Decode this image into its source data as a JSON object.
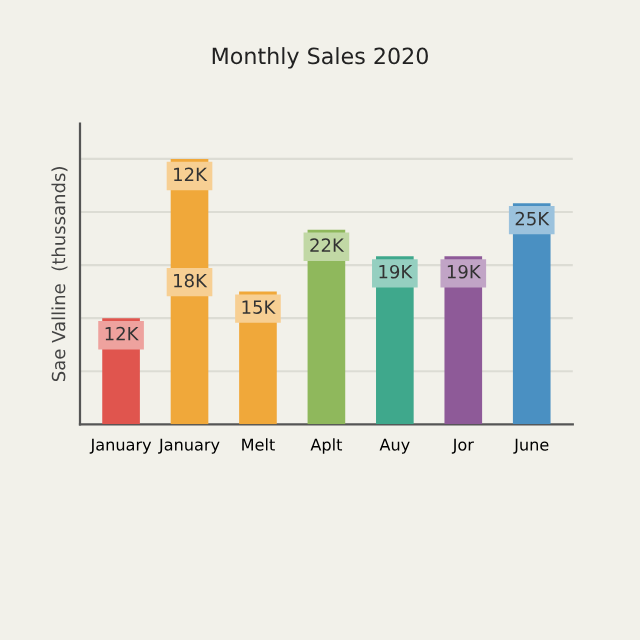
{
  "chart_data": {
    "type": "bar",
    "title": "Monthly Sales 2020",
    "ylabel": "Sae Valline  (thussands)",
    "categories": [
      "January",
      "January",
      "Melt",
      "Aplt",
      "Auy",
      "Jor",
      "June"
    ],
    "stacked": true,
    "grid": "y",
    "tick_labels": "x",
    "ylim": [
      0,
      34
    ],
    "yticks": [
      {
        "value": 6,
        "label": null
      },
      {
        "value": 12,
        "label": null
      },
      {
        "value": 18,
        "label": null
      },
      {
        "value": 24,
        "label": null
      },
      {
        "value": 30,
        "label": null
      }
    ],
    "series": [
      {
        "colors": [
          "#e0554e",
          "#f0a83a",
          "#f0a83a",
          "#8fb85c",
          "#3fa88c",
          "#8e5a98",
          "#4a90c2"
        ],
        "values": [
          12,
          18,
          15,
          22,
          19,
          19,
          25
        ],
        "value_labels": [
          "12K",
          "18K",
          "15K",
          "22K",
          "19K",
          "19K",
          "25K"
        ]
      },
      {
        "colors": [
          null,
          "#f0a83a",
          null,
          null,
          null,
          null,
          null
        ],
        "values": [
          null,
          12,
          null,
          null,
          null,
          null,
          null
        ],
        "value_labels": [
          null,
          "12K",
          null,
          null,
          null,
          null,
          null
        ]
      }
    ]
  }
}
